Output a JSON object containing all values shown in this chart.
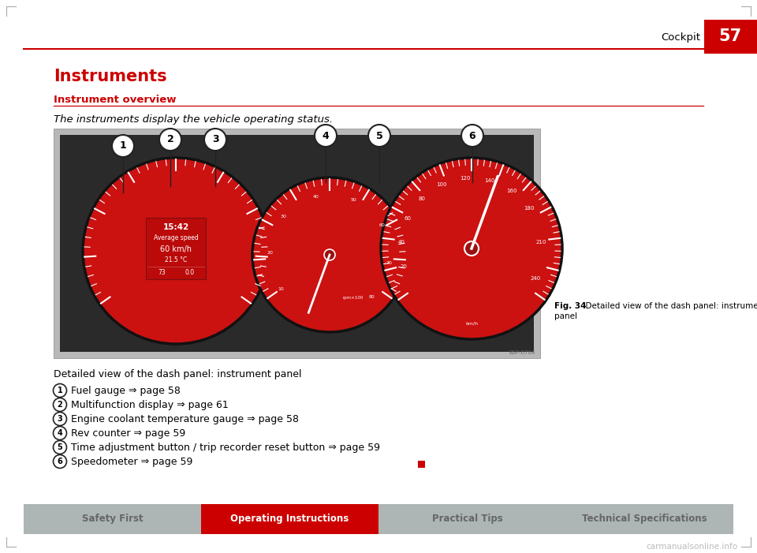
{
  "page_bg": "#ffffff",
  "red_line_color": "#cc0000",
  "red_box_color": "#cc0000",
  "page_number": "57",
  "section_header": "Cockpit",
  "title": "Instruments",
  "title_color": "#cc0000",
  "subsection_title": "Instrument overview",
  "subsection_color": "#cc0000",
  "intro_text": "The instruments display the vehicle operating status.",
  "fig_caption_bold": "Fig. 34",
  "fig_caption_rest": "  Detailed view of the dash panel: instrument",
  "fig_caption_line2": "panel",
  "below_fig_text": "Detailed view of the dash panel: instrument panel",
  "list_items": [
    {
      "num": "1",
      "text": "Fuel gauge ⇒ page 58"
    },
    {
      "num": "2",
      "text": "Multifunction display ⇒ page 61"
    },
    {
      "num": "3",
      "text": "Engine coolant temperature gauge ⇒ page 58"
    },
    {
      "num": "4",
      "text": "Rev counter ⇒ page 59"
    },
    {
      "num": "5",
      "text": "Time adjustment button / trip recorder reset button ⇒ page 59"
    },
    {
      "num": "6",
      "text": "Speedometer ⇒ page 59"
    }
  ],
  "footer_tabs": [
    {
      "label": "Safety First",
      "active": false
    },
    {
      "label": "Operating Instructions",
      "active": true
    },
    {
      "label": "Practical Tips",
      "active": false
    },
    {
      "label": "Technical Specifications",
      "active": false
    }
  ],
  "footer_bg": "#adb5b5",
  "footer_active_bg": "#cc0000",
  "footer_inactive_text": "#666666",
  "footer_active_text": "#ffffff",
  "small_red_square_color": "#cc0000",
  "corner_marks_color": "#aaaaaa",
  "watermark_text": "carmanualsonline.info",
  "watermark_color": "#bbbbbb",
  "img_bg": "#b8b8b8",
  "cluster_bg": "#2a2a2a",
  "gauge_face": "#cc1111",
  "gauge_edge": "#111111",
  "bsp_text": "BSP-0704"
}
